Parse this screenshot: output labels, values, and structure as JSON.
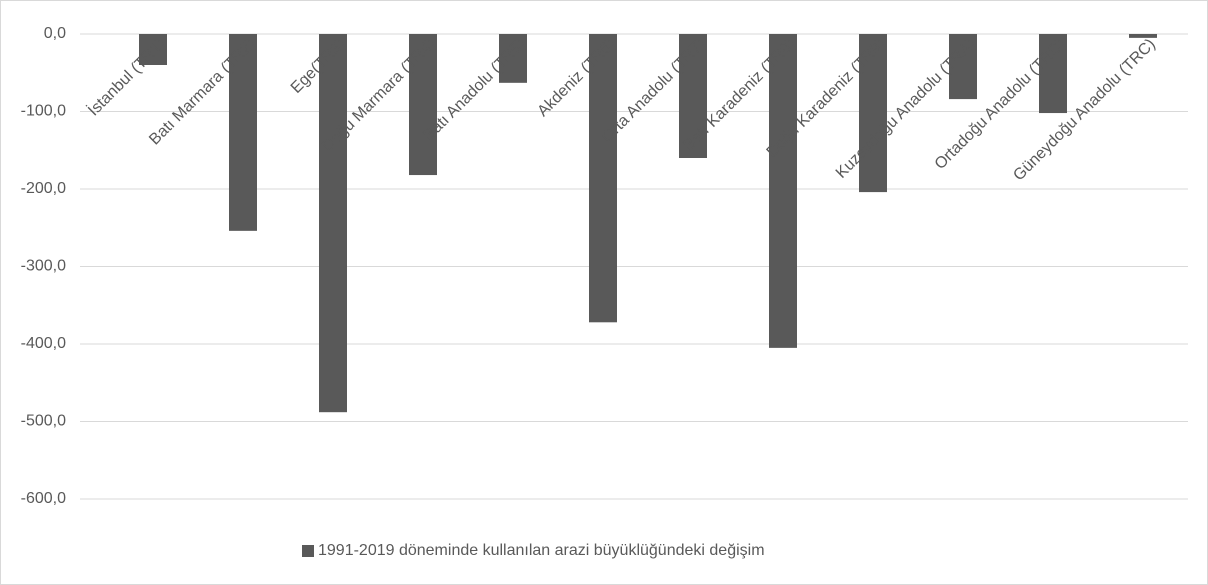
{
  "chart_data": {
    "type": "bar",
    "categories": [
      "İstanbul (TR1)",
      "Batı Marmara (TR2)",
      "Ege(TR3)",
      "Doğu Marmara (TR4)",
      "Batı Anadolu (TR5)",
      "Akdeniz (TR6)",
      "Orta Anadolu (TR7)",
      "Batı Karadeniz (TR8)",
      "Doğu Karadeniz (TR9)",
      "Kuzeydoğu Anadolu (TRA)",
      "Ortadoğu Anadolu (TRC)",
      "Güneydoğu Anadolu (TRC)"
    ],
    "series": [
      {
        "name": "1991-2019 döneminde kullanılan arazi büyüklüğündeki değişim",
        "color": "#595959",
        "values": [
          -40,
          -254,
          -488,
          -182,
          -63,
          -372,
          -160,
          -405,
          -204,
          -84,
          -102,
          -5
        ]
      }
    ],
    "ylim": [
      -600,
      0
    ],
    "yticks": [
      {
        "value": 0,
        "label": "0,0"
      },
      {
        "value": -100,
        "label": "-100,0"
      },
      {
        "value": -200,
        "label": "-200,0"
      },
      {
        "value": -300,
        "label": "-300,0"
      },
      {
        "value": -400,
        "label": "-400,0"
      },
      {
        "value": -500,
        "label": "-500,0"
      },
      {
        "value": -600,
        "label": "-600,0"
      }
    ],
    "grid": true,
    "legend": "bottom"
  }
}
